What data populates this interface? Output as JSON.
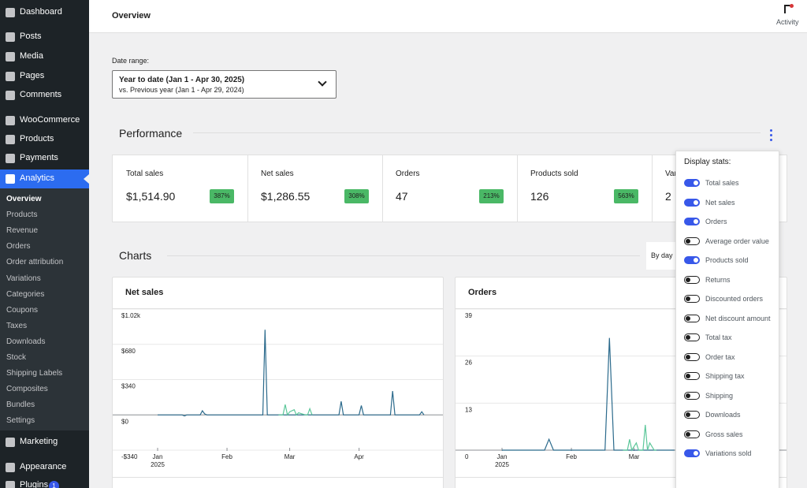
{
  "sidebar": {
    "menu": [
      {
        "label": "Dashboard"
      },
      {
        "label": "Posts"
      },
      {
        "label": "Media"
      },
      {
        "label": "Pages"
      },
      {
        "label": "Comments"
      },
      {
        "label": "WooCommerce"
      },
      {
        "label": "Products"
      },
      {
        "label": "Payments"
      },
      {
        "label": "Analytics"
      }
    ],
    "submenu": [
      "Overview",
      "Products",
      "Revenue",
      "Orders",
      "Order attribution",
      "Variations",
      "Categories",
      "Coupons",
      "Taxes",
      "Downloads",
      "Stock",
      "Shipping Labels",
      "Composites",
      "Bundles",
      "Settings"
    ],
    "menu_bottom": [
      {
        "label": "Marketing"
      },
      {
        "label": "Appearance"
      },
      {
        "label": "Plugins",
        "badge": 1
      }
    ]
  },
  "header": {
    "title": "Overview",
    "activity": "Activity"
  },
  "date_range": {
    "label": "Date range:",
    "primary": "Year to date (Jan 1 - Apr 30, 2025)",
    "secondary": "vs. Previous year (Jan 1 - Apr 29, 2024)"
  },
  "performance": {
    "title": "Performance",
    "stats": [
      {
        "label": "Total sales",
        "value": "$1,514.90",
        "delta": "387%"
      },
      {
        "label": "Net sales",
        "value": "$1,286.55",
        "delta": "308%"
      },
      {
        "label": "Orders",
        "value": "47",
        "delta": "213%"
      },
      {
        "label": "Products sold",
        "value": "126",
        "delta": "563%"
      },
      {
        "label": "Variations sold",
        "value": "2"
      }
    ]
  },
  "charts_section": {
    "title": "Charts",
    "interval": "By day"
  },
  "display_stats": {
    "title": "Display stats:",
    "items": [
      {
        "label": "Total sales",
        "on": true
      },
      {
        "label": "Net sales",
        "on": true
      },
      {
        "label": "Orders",
        "on": true
      },
      {
        "label": "Average order value",
        "on": false
      },
      {
        "label": "Products sold",
        "on": true
      },
      {
        "label": "Returns",
        "on": false
      },
      {
        "label": "Discounted orders",
        "on": false
      },
      {
        "label": "Net discount amount",
        "on": false
      },
      {
        "label": "Total tax",
        "on": false
      },
      {
        "label": "Order tax",
        "on": false
      },
      {
        "label": "Shipping tax",
        "on": false
      },
      {
        "label": "Shipping",
        "on": false
      },
      {
        "label": "Downloads",
        "on": false
      },
      {
        "label": "Gross sales",
        "on": false
      },
      {
        "label": "Variations sold",
        "on": true
      }
    ]
  },
  "chart_data": [
    {
      "type": "line",
      "title": "Net sales",
      "xlim": [
        1,
        120
      ],
      "xticks": [
        {
          "value": 1,
          "label": "Jan"
        },
        {
          "value": 32,
          "label": "Feb"
        },
        {
          "value": 60,
          "label": "Mar"
        },
        {
          "value": 91,
          "label": "Apr"
        }
      ],
      "xtick_sublabel": "2025",
      "ylim": [
        -340,
        1020
      ],
      "yticks": [
        {
          "value": -340,
          "label": "-$340"
        },
        {
          "value": 0,
          "label": "$0"
        },
        {
          "value": 340,
          "label": "$340"
        },
        {
          "value": 680,
          "label": "$680"
        },
        {
          "value": 1020,
          "label": "$1.02k"
        }
      ],
      "grid": true,
      "series": [
        {
          "color": "#2b6a8c",
          "x": [
            1,
            12,
            13,
            14,
            20,
            21,
            22,
            23,
            47,
            48,
            49,
            50,
            81,
            82,
            83,
            84,
            90,
            91,
            92,
            93,
            104,
            105,
            106,
            107,
            118,
            119,
            120
          ],
          "values": [
            0,
            0,
            -10,
            0,
            0,
            40,
            10,
            0,
            0,
            0,
            820,
            0,
            0,
            0,
            130,
            0,
            0,
            0,
            90,
            0,
            0,
            0,
            230,
            0,
            0,
            30,
            0
          ]
        },
        {
          "color": "#5cc79a",
          "x": [
            55,
            57,
            58,
            59,
            60,
            62,
            63,
            64,
            67,
            68,
            69,
            70
          ],
          "values": [
            0,
            0,
            100,
            0,
            30,
            50,
            0,
            20,
            0,
            0,
            60,
            0
          ]
        }
      ]
    },
    {
      "type": "line",
      "title": "Orders",
      "xlim": [
        1,
        120
      ],
      "xticks": [
        {
          "value": 1,
          "label": "Jan"
        },
        {
          "value": 32,
          "label": "Feb"
        },
        {
          "value": 60,
          "label": "Mar"
        }
      ],
      "xtick_sublabel": "2025",
      "ylim": [
        0,
        39
      ],
      "yticks": [
        0,
        13,
        26,
        39
      ],
      "grid": true,
      "series": [
        {
          "color": "#2b6a8c",
          "x": [
            1,
            20,
            22,
            24,
            47,
            49,
            51,
            78
          ],
          "values": [
            0,
            0,
            3,
            0,
            0,
            31,
            0,
            0
          ]
        },
        {
          "color": "#5cc79a",
          "x": [
            55,
            57,
            58,
            59,
            61,
            62,
            64,
            65,
            66,
            67,
            69,
            70
          ],
          "values": [
            0,
            0,
            3,
            0,
            2,
            0,
            0,
            7,
            0,
            2,
            0,
            0
          ]
        }
      ]
    }
  ]
}
